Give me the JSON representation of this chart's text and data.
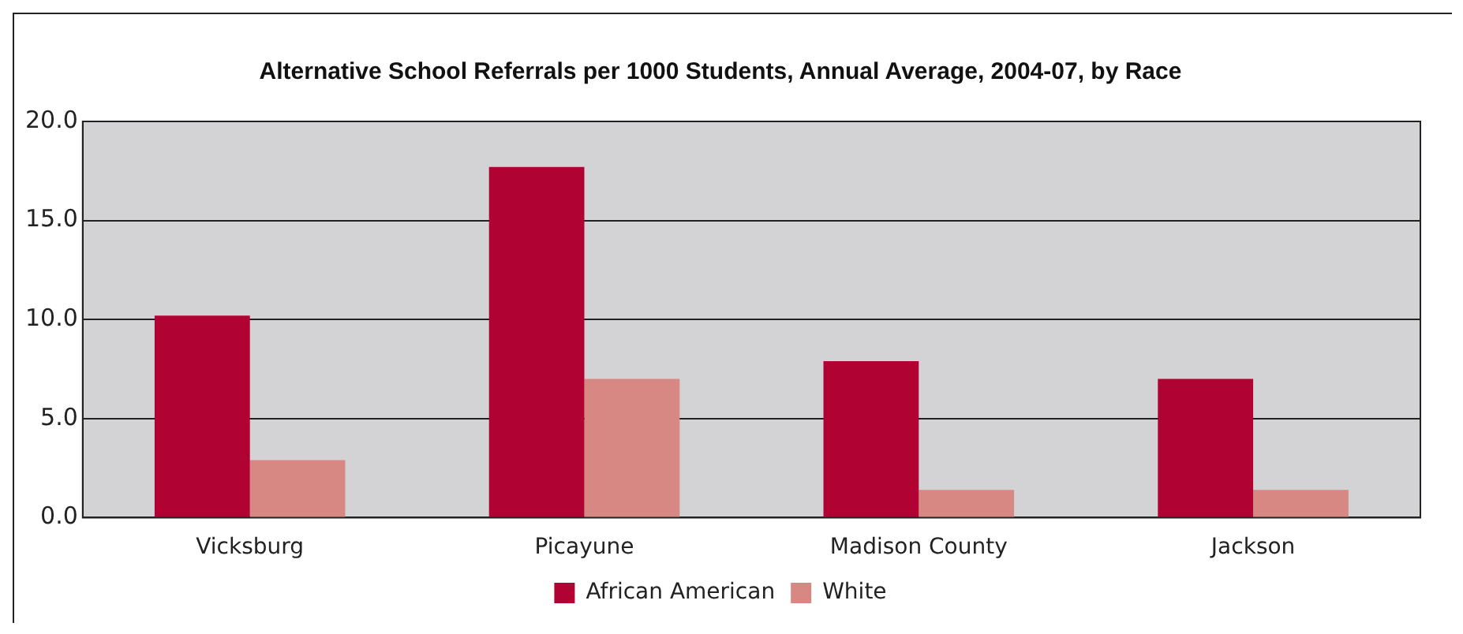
{
  "chart_data": {
    "type": "bar",
    "title": "Alternative School Referrals per 1000 Students, Annual Average, 2004-07, by Race",
    "categories": [
      "Vicksburg",
      "Picayune",
      "Madison County",
      "Jackson"
    ],
    "series": [
      {
        "name": "African American",
        "color": "#b00333",
        "values": [
          10.2,
          17.7,
          7.9,
          7.0
        ]
      },
      {
        "name": "White",
        "color": "#d88882",
        "values": [
          2.9,
          7.0,
          1.4,
          1.4
        ]
      }
    ],
    "ylim": [
      0,
      20
    ],
    "yticks": [
      {
        "value": 0,
        "label": "0.0"
      },
      {
        "value": 5,
        "label": "5.0"
      },
      {
        "value": 10,
        "label": "10.0"
      },
      {
        "value": 15,
        "label": "15.0"
      },
      {
        "value": 20,
        "label": "20.0"
      }
    ],
    "grid": "y",
    "legend": "bottom"
  }
}
